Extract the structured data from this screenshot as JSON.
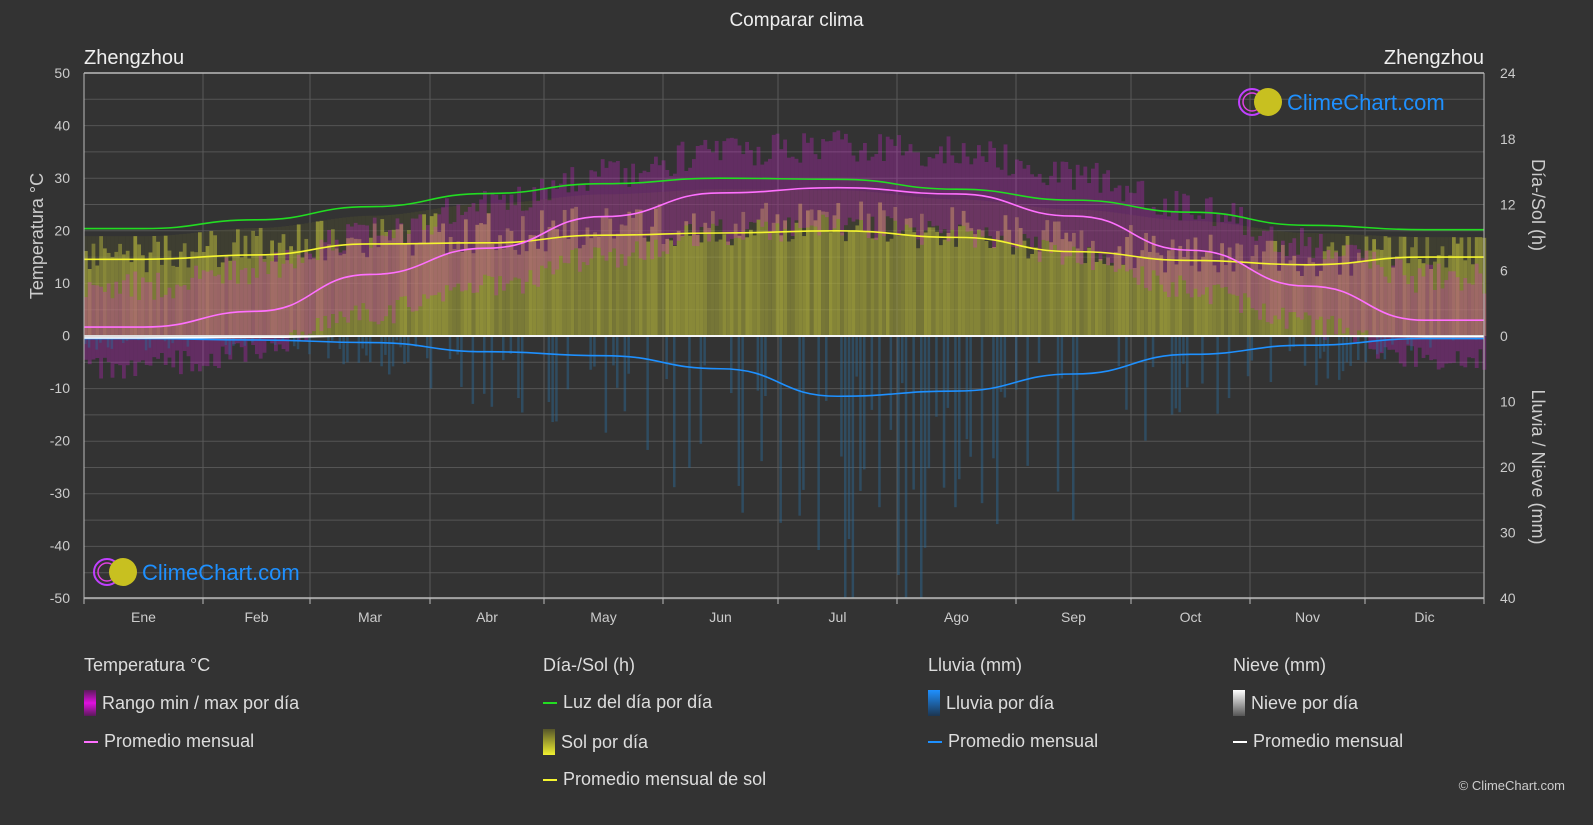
{
  "title": "Comparar clima",
  "city_left": "Zhengzhou",
  "city_right": "Zhengzhou",
  "logo_text": "ClimeChart.com",
  "copyright": "© ClimeChart.com",
  "colors": {
    "temp_band": "#e020e0",
    "temp_avg": "#ff70ff",
    "daylight": "#22dd22",
    "sun": "#e8e840",
    "sun_avg": "#f5f530",
    "rain": "#1e90ff",
    "snow": "#ffffff",
    "logo": "#1e90ff"
  },
  "chart_data": {
    "type": "line",
    "title": "Comparar clima",
    "categories": [
      "Ene",
      "Feb",
      "Mar",
      "Abr",
      "May",
      "Jun",
      "Jul",
      "Ago",
      "Sep",
      "Oct",
      "Nov",
      "Dic"
    ],
    "y_left": {
      "label": "Temperatura °C",
      "range": [
        -50,
        50
      ],
      "ticks": [
        "50",
        "40",
        "30",
        "20",
        "10",
        "0",
        "-10",
        "-20",
        "-30",
        "-40",
        "-50"
      ]
    },
    "y_right_top": {
      "label": "Día-/Sol (h)",
      "range": [
        0,
        24
      ],
      "ticks": [
        "24",
        "18",
        "12",
        "6",
        "0"
      ]
    },
    "y_right_bottom": {
      "label": "Lluvia / Nieve (mm)",
      "range": [
        0,
        40
      ],
      "ticks": [
        "0",
        "10",
        "20",
        "30",
        "40"
      ]
    },
    "grid": true,
    "series": [
      {
        "name": "Temperatura promedio mensual",
        "unit": "°C",
        "values": [
          1.7,
          4.7,
          11.7,
          16.7,
          22.7,
          27.2,
          28.2,
          27.0,
          22.8,
          16.3,
          9.5,
          3.0
        ]
      },
      {
        "name": "Luz del día por día",
        "unit": "h",
        "values": [
          9.8,
          10.6,
          11.8,
          13.0,
          13.9,
          14.4,
          14.3,
          13.4,
          12.4,
          11.3,
          10.1,
          9.7
        ]
      },
      {
        "name": "Promedio mensual de sol",
        "unit": "h",
        "values": [
          7.0,
          7.4,
          8.4,
          8.5,
          9.2,
          9.4,
          9.6,
          9.0,
          7.7,
          6.9,
          6.5,
          7.2
        ]
      },
      {
        "name": "Lluvia promedio mensual",
        "unit": "mm",
        "values": [
          0.4,
          0.6,
          1.0,
          2.4,
          3.0,
          5.0,
          9.2,
          8.4,
          5.8,
          2.8,
          1.4,
          0.4
        ]
      },
      {
        "name": "Nieve promedio mensual",
        "unit": "mm",
        "values": [
          0.3,
          0.2,
          0,
          0,
          0,
          0,
          0,
          0,
          0,
          0,
          0,
          0.1
        ]
      }
    ]
  },
  "legend": {
    "temp": {
      "heading": "Temperatura °C",
      "range": "Rango min / max por día",
      "avg": "Promedio mensual"
    },
    "sun": {
      "heading": "Día-/Sol (h)",
      "daylight": "Luz del día por día",
      "sun": "Sol por día",
      "avg": "Promedio mensual de sol"
    },
    "rain": {
      "heading": "Lluvia (mm)",
      "daily": "Lluvia por día",
      "avg": "Promedio mensual"
    },
    "snow": {
      "heading": "Nieve (mm)",
      "daily": "Nieve por día",
      "avg": "Promedio mensual"
    }
  }
}
